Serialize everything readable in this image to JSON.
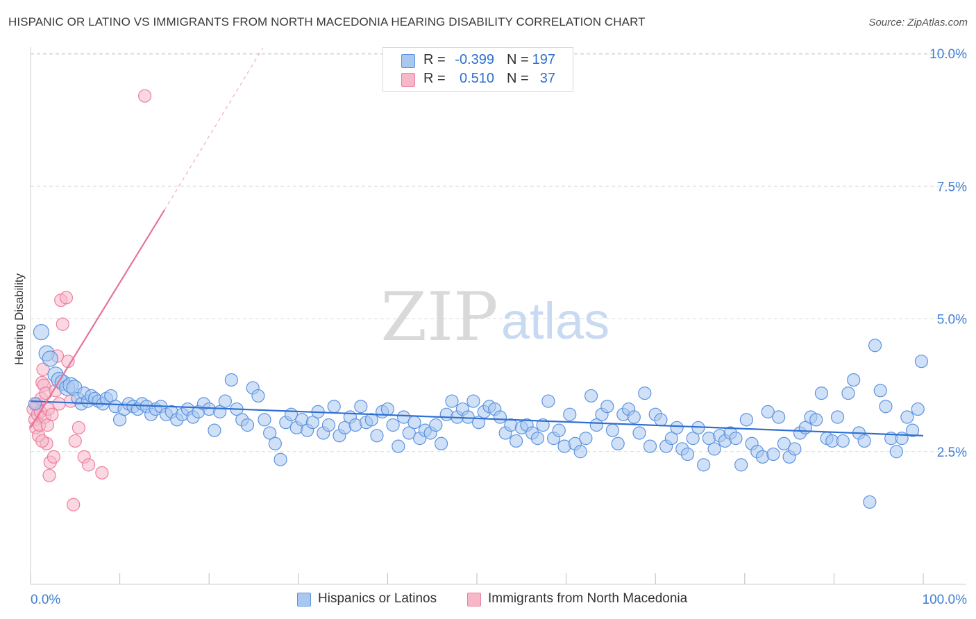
{
  "title": "HISPANIC OR LATINO VS IMMIGRANTS FROM NORTH MACEDONIA HEARING DISABILITY CORRELATION CHART",
  "source": "Source: ZipAtlas.com",
  "watermark": {
    "zip": "ZIP",
    "atlas": "atlas"
  },
  "legend": {
    "rows": [
      {
        "r_label": "R =",
        "r_value": "-0.399",
        "n_label": "N =",
        "n_value": "197",
        "color": "#a9c8f0"
      },
      {
        "r_label": "R =",
        "r_value": "0.510",
        "n_label": "N =",
        "n_value": "37",
        "color": "#f6b7c9"
      }
    ]
  },
  "bottom_legend": [
    {
      "label": "Hispanics or Latinos",
      "color": "#a9c8f0"
    },
    {
      "label": "Immigrants from North Macedonia",
      "color": "#f6b7c9"
    }
  ],
  "colors": {
    "blue_fill": "#a9c8f0",
    "blue_stroke": "#5b93e0",
    "blue_line": "#2f6fd1",
    "pink_fill": "#f6b7c9",
    "pink_stroke": "#ec7fa0",
    "pink_line": "#e6739b",
    "tick_label": "#3f7fd6",
    "grid": "#d9d9d9"
  },
  "chart_data": {
    "type": "scatter",
    "title": "HISPANIC OR LATINO VS IMMIGRANTS FROM NORTH MACEDONIA HEARING DISABILITY CORRELATION CHART",
    "xlabel": "",
    "ylabel": "Hearing Disability",
    "xlim": [
      0,
      100
    ],
    "ylim": [
      0,
      10.5
    ],
    "x_tick_labels": [
      "0.0%",
      "100.0%"
    ],
    "y_ticks": [
      2.5,
      5.0,
      7.5,
      10.0
    ],
    "y_tick_labels": [
      "2.5%",
      "5.0%",
      "7.5%",
      "10.0%"
    ],
    "grid": "horizontal dashed",
    "legend_position": "top-center",
    "series": [
      {
        "name": "Hispanics or Latinos",
        "r": -0.399,
        "n": 197,
        "trend": {
          "x": [
            0,
            100
          ],
          "y": [
            3.45,
            2.8
          ]
        },
        "points": [
          [
            0.5,
            3.4
          ],
          [
            1.2,
            4.75
          ],
          [
            1.8,
            4.35
          ],
          [
            2.2,
            4.25
          ],
          [
            2.8,
            3.95
          ],
          [
            3.2,
            3.85
          ],
          [
            3.6,
            3.8
          ],
          [
            4.1,
            3.7
          ],
          [
            4.5,
            3.75
          ],
          [
            4.9,
            3.7
          ],
          [
            5.3,
            3.5
          ],
          [
            5.7,
            3.4
          ],
          [
            6.0,
            3.6
          ],
          [
            6.4,
            3.45
          ],
          [
            6.8,
            3.55
          ],
          [
            7.2,
            3.5
          ],
          [
            7.6,
            3.45
          ],
          [
            8.1,
            3.4
          ],
          [
            8.5,
            3.5
          ],
          [
            9.0,
            3.55
          ],
          [
            9.5,
            3.35
          ],
          [
            10.0,
            3.1
          ],
          [
            10.5,
            3.3
          ],
          [
            11.0,
            3.4
          ],
          [
            11.5,
            3.35
          ],
          [
            12.0,
            3.3
          ],
          [
            12.5,
            3.4
          ],
          [
            13.0,
            3.35
          ],
          [
            13.5,
            3.2
          ],
          [
            14.0,
            3.3
          ],
          [
            14.6,
            3.35
          ],
          [
            15.2,
            3.2
          ],
          [
            15.8,
            3.25
          ],
          [
            16.4,
            3.1
          ],
          [
            17.0,
            3.2
          ],
          [
            17.6,
            3.3
          ],
          [
            18.2,
            3.15
          ],
          [
            18.8,
            3.25
          ],
          [
            19.4,
            3.4
          ],
          [
            20.0,
            3.3
          ],
          [
            20.6,
            2.9
          ],
          [
            21.2,
            3.25
          ],
          [
            21.8,
            3.45
          ],
          [
            22.5,
            3.85
          ],
          [
            23.1,
            3.3
          ],
          [
            23.7,
            3.1
          ],
          [
            24.3,
            3.0
          ],
          [
            24.9,
            3.7
          ],
          [
            25.5,
            3.55
          ],
          [
            26.2,
            3.1
          ],
          [
            26.8,
            2.85
          ],
          [
            27.4,
            2.65
          ],
          [
            28.0,
            2.35
          ],
          [
            28.6,
            3.05
          ],
          [
            29.2,
            3.2
          ],
          [
            29.8,
            2.95
          ],
          [
            30.4,
            3.1
          ],
          [
            31.0,
            2.9
          ],
          [
            31.6,
            3.05
          ],
          [
            32.2,
            3.25
          ],
          [
            32.8,
            2.85
          ],
          [
            33.4,
            3.0
          ],
          [
            34.0,
            3.35
          ],
          [
            34.6,
            2.8
          ],
          [
            35.2,
            2.95
          ],
          [
            35.8,
            3.15
          ],
          [
            36.4,
            3.0
          ],
          [
            37.0,
            3.35
          ],
          [
            37.6,
            3.05
          ],
          [
            38.2,
            3.1
          ],
          [
            38.8,
            2.8
          ],
          [
            39.4,
            3.25
          ],
          [
            40.0,
            3.3
          ],
          [
            40.6,
            3.0
          ],
          [
            41.2,
            2.6
          ],
          [
            41.8,
            3.15
          ],
          [
            42.4,
            2.85
          ],
          [
            43.0,
            3.05
          ],
          [
            43.6,
            2.75
          ],
          [
            44.2,
            2.9
          ],
          [
            44.8,
            2.85
          ],
          [
            45.4,
            3.0
          ],
          [
            46.0,
            2.65
          ],
          [
            46.6,
            3.2
          ],
          [
            47.2,
            3.45
          ],
          [
            47.8,
            3.15
          ],
          [
            48.4,
            3.3
          ],
          [
            49.0,
            3.15
          ],
          [
            49.6,
            3.45
          ],
          [
            50.2,
            3.05
          ],
          [
            50.8,
            3.25
          ],
          [
            51.4,
            3.35
          ],
          [
            52.0,
            3.3
          ],
          [
            52.6,
            3.15
          ],
          [
            53.2,
            2.85
          ],
          [
            53.8,
            3.0
          ],
          [
            54.4,
            2.7
          ],
          [
            55.0,
            2.95
          ],
          [
            55.6,
            3.0
          ],
          [
            56.2,
            2.85
          ],
          [
            56.8,
            2.75
          ],
          [
            57.4,
            3.0
          ],
          [
            58.0,
            3.45
          ],
          [
            58.6,
            2.75
          ],
          [
            59.2,
            2.9
          ],
          [
            59.8,
            2.6
          ],
          [
            60.4,
            3.2
          ],
          [
            61.0,
            2.65
          ],
          [
            61.6,
            2.5
          ],
          [
            62.2,
            2.75
          ],
          [
            62.8,
            3.55
          ],
          [
            63.4,
            3.0
          ],
          [
            64.0,
            3.2
          ],
          [
            64.6,
            3.35
          ],
          [
            65.2,
            2.9
          ],
          [
            65.8,
            2.65
          ],
          [
            66.4,
            3.2
          ],
          [
            67.0,
            3.3
          ],
          [
            67.6,
            3.15
          ],
          [
            68.2,
            2.85
          ],
          [
            68.8,
            3.6
          ],
          [
            69.4,
            2.6
          ],
          [
            70.0,
            3.2
          ],
          [
            70.6,
            3.1
          ],
          [
            71.2,
            2.6
          ],
          [
            71.8,
            2.75
          ],
          [
            72.4,
            2.95
          ],
          [
            73.0,
            2.55
          ],
          [
            73.6,
            2.45
          ],
          [
            74.2,
            2.75
          ],
          [
            74.8,
            2.95
          ],
          [
            75.4,
            2.25
          ],
          [
            76.0,
            2.75
          ],
          [
            76.6,
            2.55
          ],
          [
            77.2,
            2.8
          ],
          [
            77.8,
            2.7
          ],
          [
            78.4,
            2.85
          ],
          [
            79.0,
            2.75
          ],
          [
            79.6,
            2.25
          ],
          [
            80.2,
            3.1
          ],
          [
            80.8,
            2.65
          ],
          [
            81.4,
            2.5
          ],
          [
            82.0,
            2.4
          ],
          [
            82.6,
            3.25
          ],
          [
            83.2,
            2.45
          ],
          [
            83.8,
            3.15
          ],
          [
            84.4,
            2.65
          ],
          [
            85.0,
            2.4
          ],
          [
            85.6,
            2.55
          ],
          [
            86.2,
            2.85
          ],
          [
            86.8,
            2.95
          ],
          [
            87.4,
            3.15
          ],
          [
            88.0,
            3.1
          ],
          [
            88.6,
            3.6
          ],
          [
            89.2,
            2.75
          ],
          [
            89.8,
            2.7
          ],
          [
            90.4,
            3.15
          ],
          [
            91.0,
            2.7
          ],
          [
            91.6,
            3.6
          ],
          [
            92.2,
            3.85
          ],
          [
            92.8,
            2.85
          ],
          [
            93.4,
            2.7
          ],
          [
            94.0,
            1.55
          ],
          [
            94.6,
            4.5
          ],
          [
            95.2,
            3.65
          ],
          [
            95.8,
            3.35
          ],
          [
            96.4,
            2.75
          ],
          [
            97.0,
            2.5
          ],
          [
            97.6,
            2.75
          ],
          [
            98.2,
            3.15
          ],
          [
            98.8,
            2.9
          ],
          [
            99.4,
            3.3
          ],
          [
            99.8,
            4.2
          ]
        ]
      },
      {
        "name": "Immigrants from North Macedonia",
        "r": 0.51,
        "n": 37,
        "trend": {
          "x": [
            0,
            15
          ],
          "y": [
            2.95,
            7.05
          ],
          "dashed_to": {
            "x": 26,
            "y": 10.1
          }
        },
        "points": [
          [
            0.3,
            3.3
          ],
          [
            0.5,
            3.1
          ],
          [
            0.6,
            2.95
          ],
          [
            0.7,
            3.4
          ],
          [
            0.8,
            3.2
          ],
          [
            0.9,
            2.8
          ],
          [
            1.0,
            3.0
          ],
          [
            1.1,
            3.25
          ],
          [
            1.2,
            3.5
          ],
          [
            1.3,
            3.8
          ],
          [
            1.4,
            4.05
          ],
          [
            1.5,
            3.75
          ],
          [
            1.6,
            3.15
          ],
          [
            1.7,
            3.6
          ],
          [
            1.8,
            2.65
          ],
          [
            1.9,
            3.0
          ],
          [
            2.0,
            3.3
          ],
          [
            2.2,
            2.3
          ],
          [
            2.4,
            3.2
          ],
          [
            2.6,
            2.4
          ],
          [
            2.8,
            3.65
          ],
          [
            3.0,
            4.3
          ],
          [
            3.2,
            3.4
          ],
          [
            3.4,
            5.35
          ],
          [
            3.6,
            4.9
          ],
          [
            4.0,
            5.4
          ],
          [
            4.2,
            4.2
          ],
          [
            4.5,
            3.45
          ],
          [
            4.8,
            1.5
          ],
          [
            5.0,
            2.7
          ],
          [
            5.4,
            2.95
          ],
          [
            6.0,
            2.4
          ],
          [
            6.5,
            2.25
          ],
          [
            8.0,
            2.1
          ],
          [
            12.8,
            9.2
          ],
          [
            2.1,
            2.05
          ],
          [
            1.3,
            2.7
          ]
        ]
      }
    ]
  }
}
